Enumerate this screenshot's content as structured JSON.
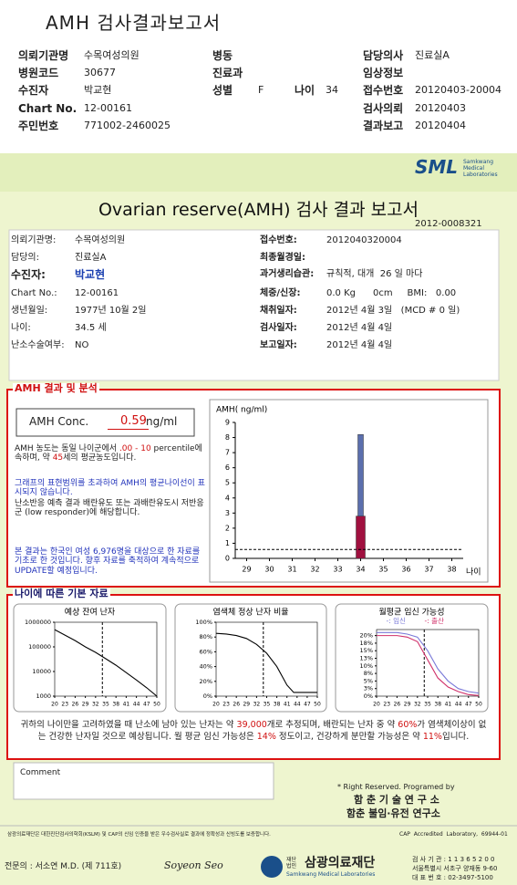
{
  "header": {
    "title": "AMH 검사결과보고서",
    "rows": [
      {
        "left": {
          "label": "의뢰기관명",
          "value": "수목여성의원"
        },
        "mid": [
          {
            "label": "병동"
          }
        ],
        "right": {
          "label": "담당의사",
          "value": "진료실A"
        }
      },
      {
        "left": {
          "label": "병원코드",
          "value": "30677"
        },
        "mid": [
          {
            "label": "진료과"
          }
        ],
        "right": {
          "label": "임상정보"
        }
      },
      {
        "left": {
          "label": "수진자",
          "value": "박교현"
        },
        "mid": [
          {
            "label": "성별",
            "value": "F"
          },
          {
            "label": "나이",
            "value": 34
          }
        ],
        "right": {
          "label": "접수번호",
          "value": "20120403-20004"
        }
      },
      {
        "left": {
          "label": "Chart No.",
          "value": "12-00161"
        },
        "right": {
          "label": "검사의뢰",
          "value": "20120403"
        }
      },
      {
        "left": {
          "label": "주민번호",
          "value": "771002-2460025"
        },
        "right": {
          "label": "결과보고",
          "value": "20120404"
        }
      }
    ]
  },
  "report": {
    "logo": "SML",
    "logo_sub": [
      "Samkwang",
      "Medical",
      "Laboratories"
    ],
    "title": "Ovarian reserve(AMH) 검사 결과 보고서",
    "number": "2012-0008321",
    "patient": {
      "left": [
        {
          "label": "의뢰기관명:",
          "value": "수목여성의원"
        },
        {
          "label": "담당의:",
          "value": "진료실A"
        },
        {
          "label": "수진자:",
          "value": "박교현"
        },
        {
          "label": "Chart No.:",
          "value": "12-00161"
        },
        {
          "label": "생년월일:",
          "value": "1977년 10월 2일"
        },
        {
          "label": "나이:",
          "value": "34.5 세"
        },
        {
          "label": "난소수술여부:",
          "value": "NO"
        }
      ],
      "right": [
        {
          "label": "접수번호:",
          "value": "2012040320004"
        },
        {
          "label": "최종월경일:"
        },
        {
          "label": "과거생리습관:",
          "value": "규칙적, 대개  26 일 마다"
        },
        {
          "label": "체중/신장:",
          "value": "0.0 Kg      0cm     BMI:   0.00"
        },
        {
          "label": "채취일자:",
          "value": "2012년 4월 3일   (MCD # 0 일)"
        },
        {
          "label": "검사일자:",
          "value": "2012년 4월 4일"
        },
        {
          "label": "보고일자:",
          "value": "2012년 4월 4일"
        }
      ]
    },
    "amh": {
      "heading": "AMH 결과 및 분석",
      "conc_label": "AMH Conc.",
      "conc_value": 0.59,
      "conc_unit": "ng/ml",
      "paragraphs": [
        {
          "color": "#222222",
          "runs": [
            "AMH 농도는 동일 나이군에서 ",
            {
              "em": ".00 - 10"
            },
            " percentile에 속하며, 약 ",
            {
              "em": "45"
            },
            "세의 평균농도입니다."
          ]
        },
        {
          "color": "#2233bb",
          "runs": [
            "그래프의 표현범위를 초과하여 AMH의 평균나이선이 표시되지 않습니다."
          ]
        },
        {
          "color": "#222222",
          "runs": [
            "난소반응 예측 결과 배란유도 또는 과배란유도시 저반응군 (low responder)에 해당합니다."
          ]
        },
        {
          "color": "#2233bb",
          "runs": [
            "본 결과는 한국인 여성 6,976명을 대상으로 한 자료를 기초로 한 것입니다. 향후 자료를 축적하여 계속적으로 UPDATE할 예정입니다."
          ]
        }
      ],
      "chart": {
        "type": "bar",
        "y_label": "AMH( ng/ml)",
        "x_label": "나이",
        "xlim": [
          28.5,
          38.5
        ],
        "xticks": [
          29,
          30,
          31,
          32,
          33,
          34,
          35,
          36,
          37,
          38
        ],
        "ylim": [
          0,
          9
        ],
        "yticks": [
          0,
          1,
          2,
          3,
          4,
          5,
          6,
          7,
          8,
          9
        ],
        "segments": [
          {
            "color": "#a0103f",
            "value": 2.8
          },
          {
            "color": "#5b6fae",
            "value": 5.4
          }
        ]
      }
    },
    "basic": {
      "heading": "나이에 따른 기본 자료",
      "charts": [
        {
          "type": "line",
          "title": "예상 잔여 난자",
          "log_scale": true,
          "x": [
            20,
            23,
            26,
            29,
            32,
            35,
            38,
            41,
            44,
            47,
            50
          ],
          "series": [
            {
              "color": "#000000",
              "values": [
                500000,
                300000,
                180000,
                100000,
                60000,
                33000,
                18000,
                9000,
                4500,
                2200,
                1000
              ]
            }
          ],
          "xlim": [
            20,
            50
          ],
          "xticks": [
            20,
            23,
            26,
            29,
            32,
            35,
            38,
            41,
            44,
            47,
            50
          ],
          "ylim": [
            1000,
            1000000
          ],
          "yticks": [
            1000,
            10000,
            100000,
            1000000
          ]
        },
        {
          "type": "line",
          "title": "염색체 정상 난자 비율",
          "x": [
            20,
            23,
            26,
            29,
            32,
            35,
            38,
            41,
            43,
            45,
            47,
            50
          ],
          "series": [
            {
              "color": "#000000",
              "values": [
                85,
                84,
                82,
                78,
                70,
                58,
                40,
                15,
                5,
                5,
                5,
                5
              ]
            }
          ],
          "xlim": [
            20,
            50
          ],
          "xticks": [
            20,
            23,
            26,
            29,
            32,
            35,
            38,
            41,
            44,
            47,
            50
          ],
          "ylim": [
            0,
            100
          ],
          "yticks": [
            {
              "value": 0,
              "label": "0%"
            },
            {
              "value": 20,
              "label": "20%"
            },
            {
              "value": 40,
              "label": "40%"
            },
            {
              "value": 60,
              "label": "60%"
            },
            {
              "value": 80,
              "label": "80%"
            },
            {
              "value": 100,
              "label": "100%"
            }
          ]
        },
        {
          "type": "line",
          "title": "월평균 임신 가능성",
          "x": [
            20,
            23,
            26,
            29,
            32,
            35,
            38,
            41,
            44,
            47,
            50
          ],
          "series": [
            {
              "name": "-: 임신",
              "color": "#7a7ad8",
              "values": [
                21,
                21,
                21,
                20.5,
                19.5,
                15,
                9,
                5,
                2.5,
                1.5,
                1
              ]
            },
            {
              "name": "-: 출산",
              "color": "#d0306a",
              "values": [
                20,
                20,
                20,
                19.5,
                18,
                12,
                6,
                3,
                1.5,
                0.5,
                0.2
              ]
            }
          ],
          "xlim": [
            20,
            50
          ],
          "xticks": [
            20,
            23,
            26,
            29,
            32,
            35,
            38,
            41,
            44,
            47,
            50
          ],
          "ylim": [
            0,
            22
          ],
          "yticks": [
            {
              "value": 0,
              "label": "0%"
            },
            {
              "value": 2.5,
              "label": "3%"
            },
            {
              "value": 5,
              "label": "5%"
            },
            {
              "value": 7.5,
              "label": "8%"
            },
            {
              "value": 10,
              "label": "10%"
            },
            {
              "value": 12.5,
              "label": "13%"
            },
            {
              "value": 15,
              "label": "15%"
            },
            {
              "value": 17.5,
              "label": "18%"
            },
            {
              "value": 20,
              "label": "20%"
            }
          ]
        }
      ],
      "summary": [
        "귀하의 나이만을 고려하였을 때 난소에 남아 있는 난자는 약 ",
        {
          "em": "39,000"
        },
        "개로 추정되며, 배란되는 난자 중 약 ",
        {
          "em": "60%"
        },
        "가 염색체이상이 없는 건강한 난자일 것으로 예상됩니다. 월 평균 임신 가능성은 ",
        {
          "em": "14%"
        },
        " 정도이고, 건강하게 분만할 가능성은 약 ",
        {
          "em": "11%"
        },
        "입니다."
      ]
    },
    "comment_label": "Comment",
    "credit": "* Right Reserved. Programed by",
    "lab1": "함 춘 기 술 연 구 소",
    "lab2": "함춘 불임·유전 연구소",
    "cert": "삼광의료재단은 대한진단검사의학회(KSLM) 및 CAP의 신임 인증을 받은 우수검사실로 결과에 정확성과 신빙도를 보증합니다.",
    "cap": "CAP  Accredited  Laboratory,  69944-01",
    "doctor": "전문의 : 서소연 M.D. (제 711호)",
    "signature": "Soyeon Seo",
    "org_prefix": "재단법인",
    "org": "삼광의료재단",
    "org_en": "Samkwang Medical Laboratories",
    "contact": [
      "검 사 기 관 : 1 1 3 6 5 2 0 0",
      "서울특별시 서초구 양재동 9-60",
      "대 표 번 호 : 02-3497-5100"
    ]
  }
}
